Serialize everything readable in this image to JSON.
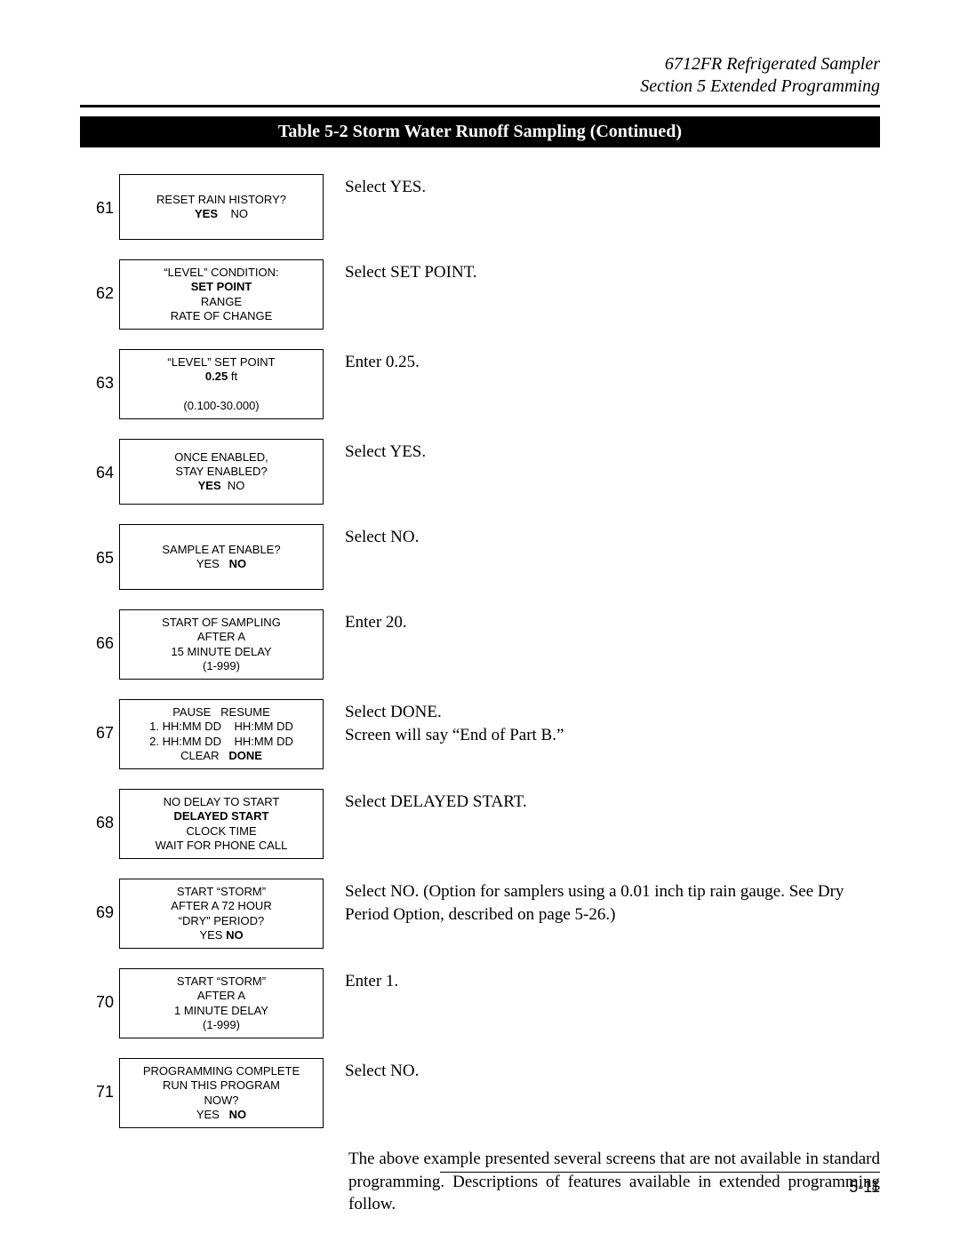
{
  "header": {
    "line1": "6712FR Refrigerated Sampler",
    "line2": "Section 5  Extended Programming"
  },
  "title_bar": "Table 5-2  Storm Water Runoff Sampling (Continued)",
  "steps": [
    {
      "num": "61",
      "screen": [
        {
          "text": "RESET RAIN HISTORY?",
          "bold": false
        },
        {
          "text": "YES    NO",
          "bold_parts": [
            "YES"
          ]
        }
      ],
      "instr": "Select YES."
    },
    {
      "num": "62",
      "screen": [
        {
          "text": "“LEVEL” CONDITION:",
          "bold": false
        },
        {
          "text": "SET POINT",
          "bold": true
        },
        {
          "text": "RANGE",
          "bold": false
        },
        {
          "text": "RATE OF CHANGE",
          "bold": false
        }
      ],
      "instr": "Select SET POINT."
    },
    {
      "num": "63",
      "screen": [
        {
          "text": "“LEVEL” SET POINT",
          "bold": false
        },
        {
          "text": "0.25 ft",
          "bold_parts": [
            "0.25"
          ]
        },
        {
          "text": " ",
          "bold": false
        },
        {
          "text": "(0.100-30.000)",
          "bold": false
        }
      ],
      "instr": "Enter 0.25."
    },
    {
      "num": "64",
      "screen": [
        {
          "text": "ONCE ENABLED,",
          "bold": false
        },
        {
          "text": "STAY ENABLED?",
          "bold": false
        },
        {
          "text": "YES  NO",
          "bold_parts": [
            "YES"
          ]
        }
      ],
      "instr": "Select YES."
    },
    {
      "num": "65",
      "screen": [
        {
          "text": "SAMPLE AT ENABLE?",
          "bold": false
        },
        {
          "text": "YES   NO",
          "bold_parts": [
            "NO"
          ]
        }
      ],
      "instr": "Select NO."
    },
    {
      "num": "66",
      "screen": [
        {
          "text": "START OF SAMPLING",
          "bold": false
        },
        {
          "text": "AFTER A",
          "bold": false
        },
        {
          "text": "15 MINUTE DELAY",
          "bold": false
        },
        {
          "text": "(1-999)",
          "bold": false
        }
      ],
      "instr": "Enter 20."
    },
    {
      "num": "67",
      "screen": [
        {
          "text": "PAUSE   RESUME",
          "bold": false
        },
        {
          "text": "1. HH:MM DD    HH:MM DD",
          "bold": false
        },
        {
          "text": "2. HH:MM DD    HH:MM DD",
          "bold": false
        },
        {
          "text": "CLEAR   DONE",
          "bold_parts": [
            "DONE"
          ]
        }
      ],
      "instr": "Select DONE.\nScreen will say “End of Part B.”"
    },
    {
      "num": "68",
      "screen": [
        {
          "text": "NO DELAY TO START",
          "bold": false
        },
        {
          "text": "DELAYED START",
          "bold": true
        },
        {
          "text": "CLOCK TIME",
          "bold": false
        },
        {
          "text": "WAIT FOR PHONE CALL",
          "bold": false
        }
      ],
      "instr": "Select DELAYED START."
    },
    {
      "num": "69",
      "screen": [
        {
          "text": "START “STORM”",
          "bold": false
        },
        {
          "text": "AFTER A 72 HOUR",
          "bold": false
        },
        {
          "text": "“DRY” PERIOD?",
          "bold": false
        },
        {
          "text": "YES NO",
          "bold_parts": [
            "NO"
          ]
        }
      ],
      "instr": "Select NO. (Option for samplers using a 0.01 inch tip rain gauge. See Dry Period Option, described on page 5-26.)"
    },
    {
      "num": "70",
      "screen": [
        {
          "text": "START “STORM”",
          "bold": false
        },
        {
          "text": "AFTER A",
          "bold": false
        },
        {
          "text": "1 MINUTE DELAY",
          "bold": false
        },
        {
          "text": "(1-999)",
          "bold": false
        }
      ],
      "instr": "Enter 1."
    },
    {
      "num": "71",
      "screen": [
        {
          "text": "PROGRAMMING COMPLETE",
          "bold": false
        },
        {
          "text": "RUN THIS PROGRAM",
          "bold": false
        },
        {
          "text": "NOW?",
          "bold": false
        },
        {
          "text": "YES   NO",
          "bold_parts": [
            "NO"
          ]
        }
      ],
      "instr": "Select NO."
    }
  ],
  "footer_para": "The above example presented several screens that are not available in standard programming. Descriptions of features available in extended programming follow.",
  "page_number": "5-11"
}
